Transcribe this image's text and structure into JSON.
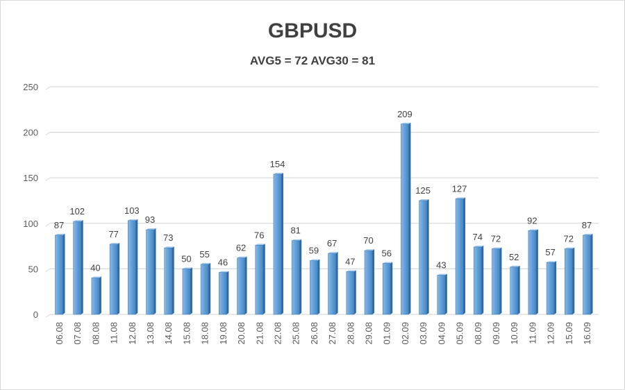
{
  "chart_data": {
    "type": "bar",
    "title": "GBPUSD",
    "subtitle": "AVG5 = 72 AVG30 = 81",
    "xlabel": "",
    "ylabel": "",
    "ylim": [
      0,
      250
    ],
    "yticks": [
      "0",
      "50",
      "100",
      "150",
      "200",
      "250"
    ],
    "grid": true,
    "bar_color": "#5b9bd5",
    "categories": [
      "06.08",
      "07.08",
      "08.08",
      "11.08",
      "12.08",
      "13.08",
      "14.08",
      "15.08",
      "18.08",
      "19.08",
      "20.08",
      "21.08",
      "22.08",
      "25.08",
      "26.08",
      "27.08",
      "28.08",
      "29.08",
      "01.09",
      "02.09",
      "03.09",
      "04.09",
      "05.09",
      "08.09",
      "09.09",
      "10.09",
      "11.09",
      "12.09",
      "15.09",
      "16.09"
    ],
    "values": [
      87,
      102,
      40,
      77,
      103,
      93,
      73,
      50,
      55,
      46,
      62,
      76,
      154,
      81,
      59,
      67,
      47,
      70,
      56,
      209,
      125,
      43,
      127,
      74,
      72,
      52,
      92,
      57,
      72,
      87
    ]
  }
}
